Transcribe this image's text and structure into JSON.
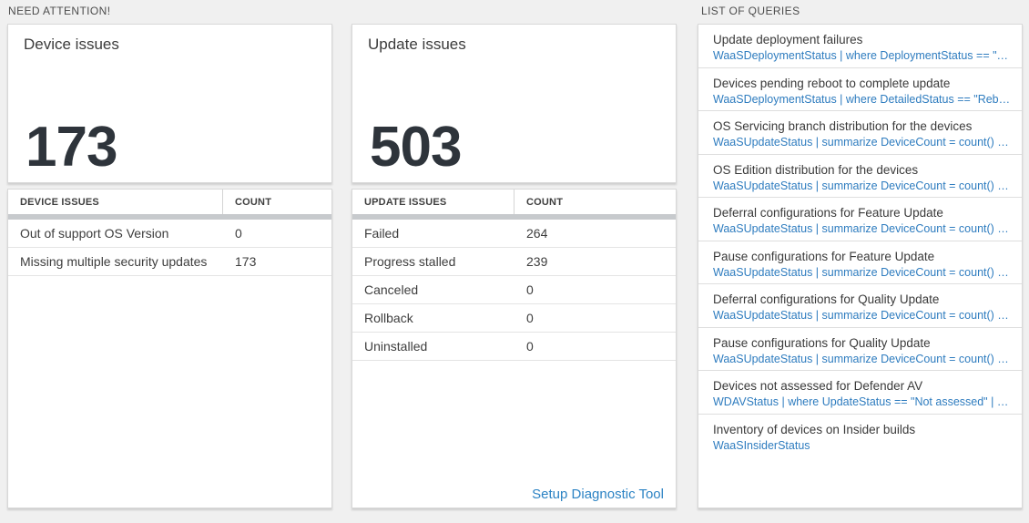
{
  "colors": {
    "page_bg": "#f0f0f0",
    "card_bg": "#ffffff",
    "card_border": "#d8d8d8",
    "section_header_text": "#4d4d4d",
    "big_number_text": "#2e343b",
    "scroll_band": "#c7cacd",
    "query_link_blue": "#2e7cbf",
    "setup_link_blue": "#2c83c4"
  },
  "need_attention": {
    "header": "NEED ATTENTION!",
    "device_tile": {
      "title": "Device issues",
      "value": "173"
    },
    "device_table": {
      "col1": "DEVICE ISSUES",
      "col2": "COUNT",
      "rows": [
        {
          "label": "Out of support OS Version",
          "count": "0"
        },
        {
          "label": "Missing multiple security updates",
          "count": "173"
        }
      ]
    },
    "update_tile": {
      "title": "Update issues",
      "value": "503"
    },
    "update_table": {
      "col1": "UPDATE ISSUES",
      "col2": "COUNT",
      "rows": [
        {
          "label": "Failed",
          "count": "264"
        },
        {
          "label": "Progress stalled",
          "count": "239"
        },
        {
          "label": "Canceled",
          "count": "0"
        },
        {
          "label": "Rollback",
          "count": "0"
        },
        {
          "label": "Uninstalled",
          "count": "0"
        }
      ],
      "footer_link": "Setup Diagnostic Tool"
    }
  },
  "queries": {
    "header": "LIST OF QUERIES",
    "items": [
      {
        "title": "Update deployment failures",
        "query": "WaaSDeploymentStatus | where DeploymentStatus == \"Failed\" |..."
      },
      {
        "title": "Devices pending reboot to complete update",
        "query": "WaaSDeploymentStatus | where DetailedStatus == \"Reboot pend..."
      },
      {
        "title": "OS Servicing branch distribution for the devices",
        "query": "WaaSUpdateStatus | summarize DeviceCount = count() by OSSer..."
      },
      {
        "title": "OS Edition distribution for the devices",
        "query": "WaaSUpdateStatus | summarize DeviceCount = count() by OSEdit..."
      },
      {
        "title": "Deferral configurations for Feature Update",
        "query": "WaaSUpdateStatus | summarize DeviceCount = count() by Featur..."
      },
      {
        "title": "Pause configurations for Feature Update",
        "query": "WaaSUpdateStatus | summarize DeviceCount = count() by Featur..."
      },
      {
        "title": "Deferral configurations for Quality Update",
        "query": "WaaSUpdateStatus | summarize DeviceCount = count() by Qualit..."
      },
      {
        "title": "Pause configurations for Quality Update",
        "query": "WaaSUpdateStatus | summarize DeviceCount = count() by Qualit..."
      },
      {
        "title": "Devices not assessed for Defender AV",
        "query": "WDAVStatus | where UpdateStatus == \"Not assessed\" | render ta..."
      },
      {
        "title": "Inventory of devices on Insider builds",
        "query": "WaaSInsiderStatus"
      }
    ]
  }
}
